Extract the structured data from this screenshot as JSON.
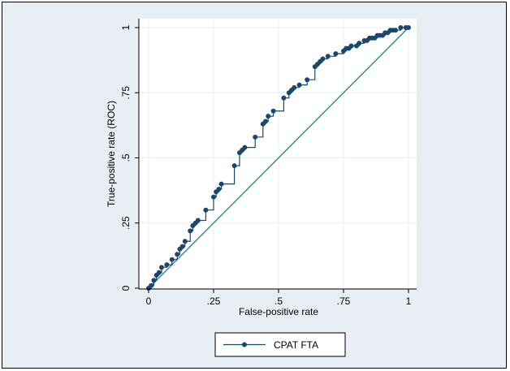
{
  "chart_data": {
    "type": "line",
    "xlabel": "False-positive rate",
    "ylabel": "True-positive rate (ROC)",
    "xlim": [
      0,
      1
    ],
    "ylim": [
      0,
      1
    ],
    "x_ticks": [
      0,
      0.25,
      0.5,
      0.75,
      1
    ],
    "x_tick_labels": [
      "0",
      ".25",
      ".5",
      ".75",
      "1"
    ],
    "y_ticks": [
      0,
      0.25,
      0.5,
      0.75,
      1
    ],
    "y_tick_labels": [
      "0",
      ".25",
      ".5",
      ".75",
      "1"
    ],
    "grid": true,
    "legend_position": "bottom",
    "colors": {
      "series": "#1a476f",
      "reference": "#2e8a7e",
      "outer_background": "#e8eef4",
      "plot_background": "#ffffff",
      "grid": "#eaf2f3"
    },
    "series": [
      {
        "name": "CPAT FTA",
        "points": [
          [
            0.0,
            0.0
          ],
          [
            0.01,
            0.01
          ],
          [
            0.02,
            0.03
          ],
          [
            0.03,
            0.05
          ],
          [
            0.04,
            0.06
          ],
          [
            0.05,
            0.08
          ],
          [
            0.07,
            0.09
          ],
          [
            0.09,
            0.11
          ],
          [
            0.11,
            0.13
          ],
          [
            0.12,
            0.15
          ],
          [
            0.13,
            0.16
          ],
          [
            0.14,
            0.18
          ],
          [
            0.16,
            0.22
          ],
          [
            0.17,
            0.24
          ],
          [
            0.18,
            0.25
          ],
          [
            0.19,
            0.26
          ],
          [
            0.22,
            0.3
          ],
          [
            0.25,
            0.35
          ],
          [
            0.26,
            0.37
          ],
          [
            0.27,
            0.38
          ],
          [
            0.28,
            0.4
          ],
          [
            0.33,
            0.47
          ],
          [
            0.35,
            0.52
          ],
          [
            0.36,
            0.53
          ],
          [
            0.37,
            0.54
          ],
          [
            0.41,
            0.58
          ],
          [
            0.44,
            0.63
          ],
          [
            0.45,
            0.64
          ],
          [
            0.46,
            0.66
          ],
          [
            0.48,
            0.68
          ],
          [
            0.52,
            0.73
          ],
          [
            0.54,
            0.75
          ],
          [
            0.55,
            0.76
          ],
          [
            0.56,
            0.77
          ],
          [
            0.58,
            0.78
          ],
          [
            0.61,
            0.8
          ],
          [
            0.64,
            0.85
          ],
          [
            0.65,
            0.86
          ],
          [
            0.66,
            0.87
          ],
          [
            0.67,
            0.88
          ],
          [
            0.69,
            0.89
          ],
          [
            0.72,
            0.9
          ],
          [
            0.75,
            0.91
          ],
          [
            0.76,
            0.92
          ],
          [
            0.77,
            0.92
          ],
          [
            0.78,
            0.93
          ],
          [
            0.8,
            0.93
          ],
          [
            0.81,
            0.94
          ],
          [
            0.83,
            0.95
          ],
          [
            0.84,
            0.95
          ],
          [
            0.85,
            0.96
          ],
          [
            0.86,
            0.96
          ],
          [
            0.87,
            0.96
          ],
          [
            0.88,
            0.97
          ],
          [
            0.89,
            0.97
          ],
          [
            0.9,
            0.97
          ],
          [
            0.91,
            0.98
          ],
          [
            0.92,
            0.98
          ],
          [
            0.93,
            0.99
          ],
          [
            0.94,
            0.99
          ],
          [
            0.95,
            0.99
          ],
          [
            0.97,
            1.0
          ],
          [
            0.99,
            1.0
          ],
          [
            1.0,
            1.0
          ]
        ]
      }
    ],
    "reference_line": [
      [
        0,
        0
      ],
      [
        1,
        1
      ]
    ]
  }
}
